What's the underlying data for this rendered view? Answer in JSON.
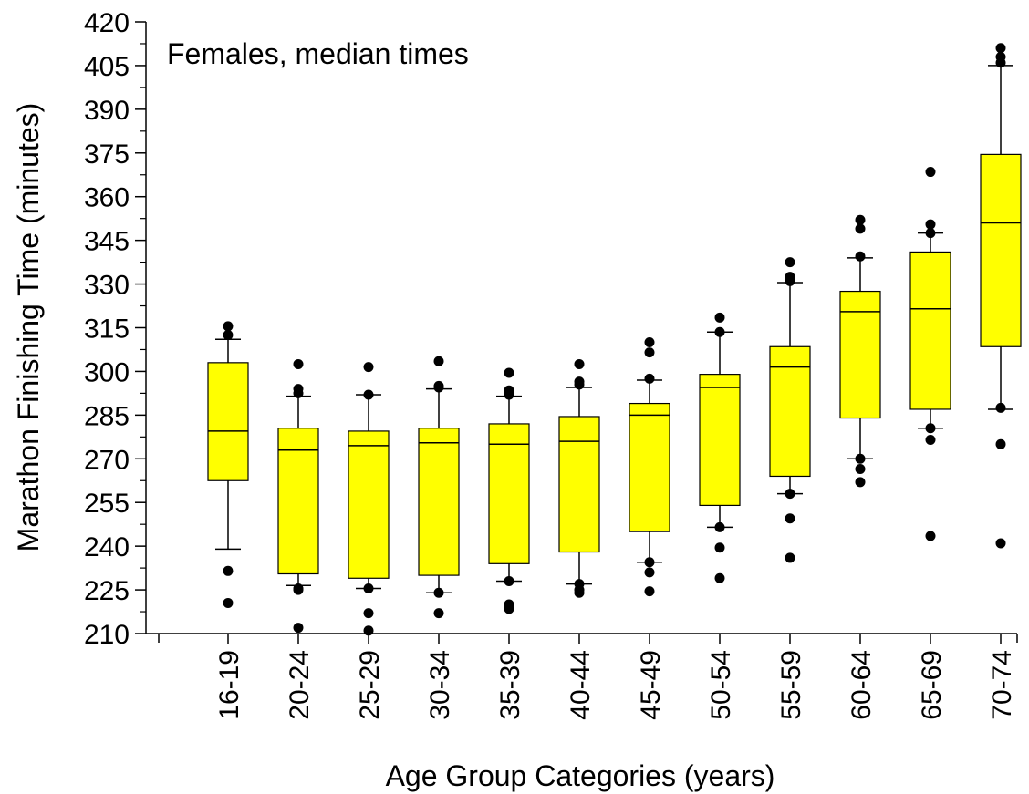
{
  "chart_data": {
    "type": "box",
    "annotation": "Females, median times",
    "xlabel": "Age Group Categories (years)",
    "ylabel": "Marathon Finishing Time (minutes)",
    "ylim": [
      210,
      420
    ],
    "yticks": [
      210,
      225,
      240,
      255,
      270,
      285,
      300,
      315,
      330,
      345,
      360,
      375,
      390,
      405,
      420
    ],
    "grid": false,
    "legend": "none",
    "box_color": "#ffff00",
    "categories": [
      "16-19",
      "20-24",
      "25-29",
      "30-34",
      "35-39",
      "40-44",
      "45-49",
      "50-54",
      "55-59",
      "60-64",
      "65-69",
      "70-74"
    ],
    "boxes": [
      {
        "category": "16-19",
        "whisker_low": 239,
        "q1": 262.5,
        "median": 279.5,
        "q3": 303,
        "whisker_high": 311,
        "outliers": [
          220.5,
          231.5,
          312.5,
          315.5
        ]
      },
      {
        "category": "20-24",
        "whisker_low": 226.5,
        "q1": 230.5,
        "median": 273,
        "q3": 280.5,
        "whisker_high": 291.5,
        "outliers": [
          212,
          225,
          225.5,
          292.5,
          294,
          302.5
        ]
      },
      {
        "category": "25-29",
        "whisker_low": 225.5,
        "q1": 229,
        "median": 274.5,
        "q3": 279.5,
        "whisker_high": 292,
        "outliers": [
          211,
          217,
          225.5,
          292,
          301.5
        ]
      },
      {
        "category": "30-34",
        "whisker_low": 224,
        "q1": 230,
        "median": 275.5,
        "q3": 280.5,
        "whisker_high": 294,
        "outliers": [
          217,
          224,
          294.5,
          295,
          303.5
        ]
      },
      {
        "category": "35-39",
        "whisker_low": 228,
        "q1": 234,
        "median": 275,
        "q3": 282,
        "whisker_high": 291.5,
        "outliers": [
          218.5,
          220,
          228,
          292,
          293.5,
          299.5
        ]
      },
      {
        "category": "40-44",
        "whisker_low": 227,
        "q1": 238,
        "median": 276,
        "q3": 284.5,
        "whisker_high": 294.5,
        "outliers": [
          224,
          225,
          227,
          295.5,
          296.5,
          302.5
        ]
      },
      {
        "category": "45-49",
        "whisker_low": 234.5,
        "q1": 245,
        "median": 285,
        "q3": 289,
        "whisker_high": 297,
        "outliers": [
          224.5,
          231,
          234.5,
          297.5,
          306.5,
          310
        ]
      },
      {
        "category": "50-54",
        "whisker_low": 246.5,
        "q1": 254,
        "median": 294.5,
        "q3": 299,
        "whisker_high": 313.5,
        "outliers": [
          229,
          239.5,
          246.5,
          313.5,
          318.5
        ]
      },
      {
        "category": "55-59",
        "whisker_low": 258,
        "q1": 264,
        "median": 301.5,
        "q3": 308.5,
        "whisker_high": 330.5,
        "outliers": [
          236,
          249.5,
          258,
          331,
          332.5,
          337.5
        ]
      },
      {
        "category": "60-64",
        "whisker_low": 270,
        "q1": 284,
        "median": 320.5,
        "q3": 327.5,
        "whisker_high": 339,
        "outliers": [
          262,
          266.5,
          270,
          339.5,
          349,
          352
        ]
      },
      {
        "category": "65-69",
        "whisker_low": 280.5,
        "q1": 287,
        "median": 321.5,
        "q3": 341,
        "whisker_high": 347.5,
        "outliers": [
          243.5,
          276.5,
          280.5,
          347.5,
          350.5,
          368.5
        ]
      },
      {
        "category": "70-74",
        "whisker_low": 287,
        "q1": 308.5,
        "median": 351,
        "q3": 374.5,
        "whisker_high": 405,
        "outliers": [
          241,
          275,
          287.5,
          406,
          408,
          411
        ]
      }
    ]
  }
}
